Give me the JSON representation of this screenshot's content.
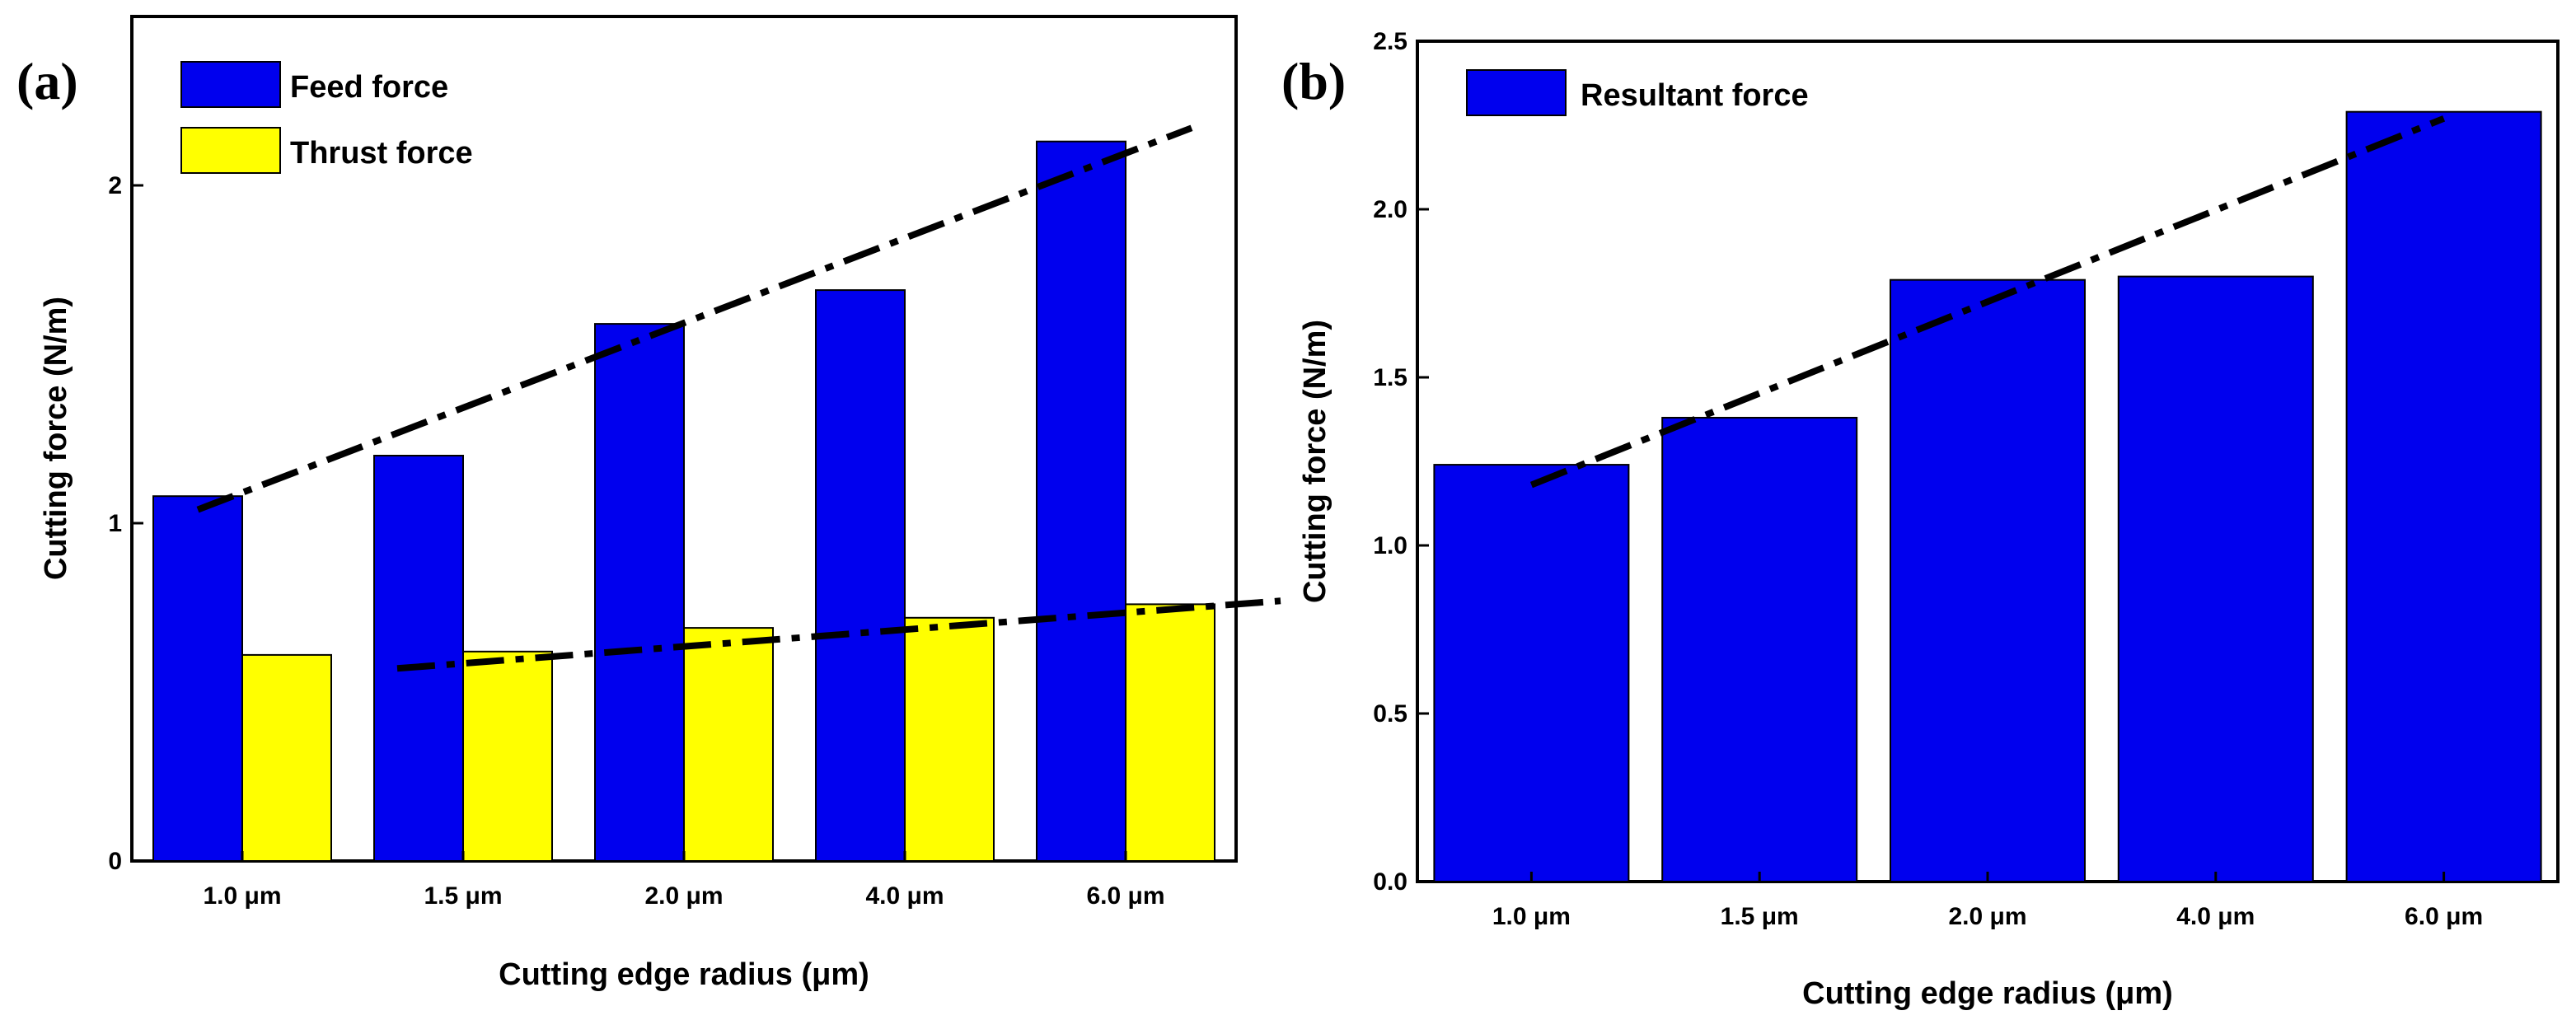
{
  "figure": {
    "panels": [
      "a",
      "b"
    ]
  },
  "chart_data": [
    {
      "panel_label": "(a)",
      "type": "bar",
      "xlabel": "Cutting edge radius (μm)",
      "ylabel": "Cutting force (N/m)",
      "categories": [
        "1.0 μm",
        "1.5 μm",
        "2.0 μm",
        "4.0 μm",
        "6.0 μm"
      ],
      "ylim": [
        0,
        2.5
      ],
      "yticks": [
        0,
        1,
        2
      ],
      "ytick_labels": [
        "0",
        "1",
        "2"
      ],
      "series": [
        {
          "name": "Feed force",
          "color": "#0000ee",
          "values": [
            1.08,
            1.2,
            1.59,
            1.69,
            2.13
          ]
        },
        {
          "name": "Thrust force",
          "color": "#ffff00",
          "values": [
            0.61,
            0.62,
            0.69,
            0.72,
            0.76
          ]
        }
      ],
      "trend_lines": [
        {
          "series": "Feed force",
          "style": "dash-dot",
          "x": [
            0.0,
            4.5
          ],
          "y": [
            1.04,
            2.17
          ]
        },
        {
          "series": "Thrust force",
          "style": "dash-dot",
          "x": [
            0.5,
            4.5
          ],
          "y": [
            0.57,
            0.77
          ]
        }
      ],
      "legend": {
        "position": "top-left",
        "entries": [
          "Feed force",
          "Thrust force"
        ]
      },
      "grid": false
    },
    {
      "panel_label": "(b)",
      "type": "bar",
      "xlabel": "Cutting edge radius (μm)",
      "ylabel": "Cutting force (N/m)",
      "categories": [
        "1.0 μm",
        "1.5 μm",
        "2.0 μm",
        "4.0 μm",
        "6.0 μm"
      ],
      "ylim": [
        0.0,
        2.5
      ],
      "yticks": [
        0.0,
        0.5,
        1.0,
        1.5,
        2.0,
        2.5
      ],
      "ytick_labels": [
        "0.0",
        "0.5",
        "1.0",
        "1.5",
        "2.0",
        "2.5"
      ],
      "series": [
        {
          "name": "Resultant force",
          "color": "#0000ee",
          "values": [
            1.24,
            1.38,
            1.79,
            1.8,
            2.29
          ]
        }
      ],
      "trend_lines": [
        {
          "series": "Resultant force",
          "style": "dash-dot",
          "x": [
            0.0,
            4.0
          ],
          "y": [
            1.18,
            2.27
          ]
        }
      ],
      "legend": {
        "position": "top-left",
        "entries": [
          "Resultant force"
        ]
      },
      "grid": false
    }
  ]
}
